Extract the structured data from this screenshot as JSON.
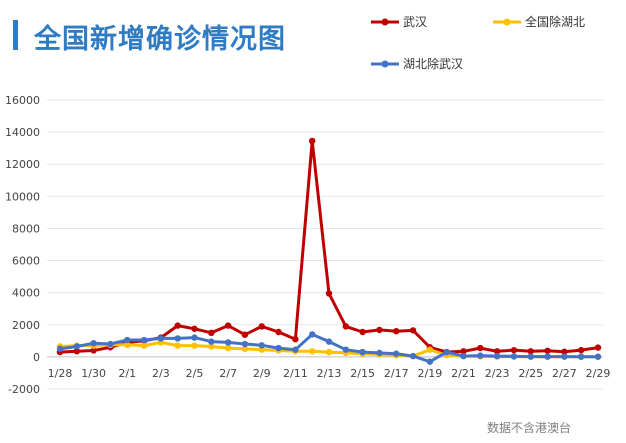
{
  "title": "全国新增确诊情况图",
  "source_note": "数据不含港澳台",
  "chart_data": {
    "type": "line",
    "categories": [
      "1/28",
      "1/29",
      "1/30",
      "1/31",
      "2/1",
      "2/2",
      "2/3",
      "2/4",
      "2/5",
      "2/6",
      "2/7",
      "2/8",
      "2/9",
      "2/10",
      "2/11",
      "2/12",
      "2/13",
      "2/14",
      "2/15",
      "2/16",
      "2/17",
      "2/18",
      "2/19",
      "2/20",
      "2/21",
      "2/22",
      "2/23",
      "2/24",
      "2/25",
      "2/26",
      "2/27",
      "2/28",
      "2/29"
    ],
    "tick_labels": [
      "1/28",
      "1/30",
      "2/1",
      "2/3",
      "2/5",
      "2/7",
      "2/9",
      "2/11",
      "2/13",
      "2/15",
      "2/17",
      "2/19",
      "2/21",
      "2/23",
      "2/25",
      "2/27",
      "2/29"
    ],
    "ylim": [
      -2000,
      16000
    ],
    "yticks": [
      -2000,
      0,
      2000,
      4000,
      6000,
      8000,
      10000,
      12000,
      14000,
      16000
    ],
    "grid": true,
    "legend_position": "top-right",
    "series": [
      {
        "name": "武汉",
        "color": "#c00000",
        "values": [
          300,
          350,
          400,
          600,
          900,
          1000,
          1200,
          1950,
          1750,
          1500,
          1950,
          1380,
          1900,
          1550,
          1100,
          13450,
          3950,
          1900,
          1550,
          1680,
          1600,
          1650,
          600,
          300,
          350,
          550,
          350,
          420,
          350,
          380,
          320,
          420,
          580
        ]
      },
      {
        "name": "全国除湖北",
        "color": "#ffc000",
        "values": [
          650,
          700,
          700,
          750,
          750,
          700,
          900,
          700,
          700,
          650,
          550,
          500,
          450,
          400,
          350,
          350,
          300,
          250,
          200,
          150,
          100,
          50,
          450,
          100,
          50,
          30,
          20,
          20,
          10,
          10,
          10,
          10,
          10
        ]
      },
      {
        "name": "湖北除武汉",
        "color": "#4472c4",
        "values": [
          500,
          650,
          850,
          800,
          1050,
          1050,
          1150,
          1150,
          1200,
          950,
          900,
          800,
          720,
          550,
          450,
          1400,
          950,
          450,
          300,
          250,
          200,
          50,
          -300,
          300,
          50,
          80,
          50,
          30,
          20,
          20,
          20,
          10,
          10
        ]
      }
    ]
  }
}
